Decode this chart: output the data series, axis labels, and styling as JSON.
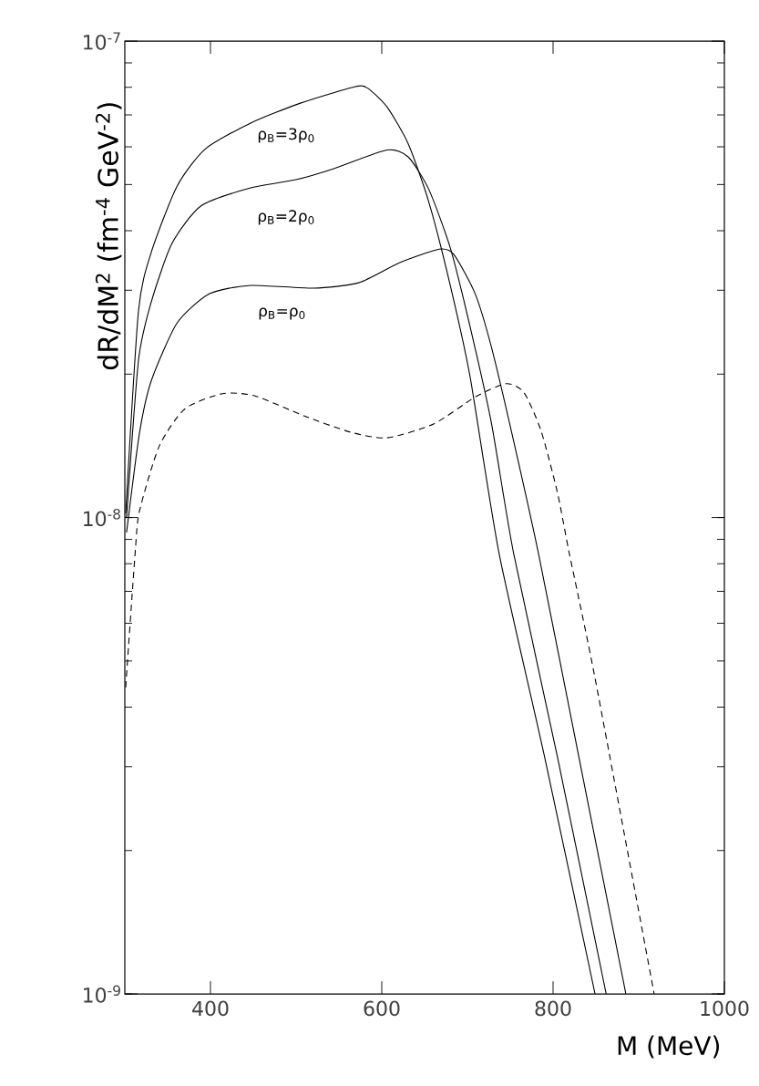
{
  "chart_data": {
    "type": "line",
    "xlabel": "M (MeV)",
    "ylabel": "dR/dM$^{2}$ (fm$^{-4}$ GeV$^{-2}$)",
    "log": "y",
    "xlim": [
      300,
      1000
    ],
    "ylim": [
      1e-09,
      1e-07
    ],
    "xticks": [
      400,
      600,
      800,
      1000
    ],
    "yticks": [
      {
        "value": 1e-09,
        "label": "10$^{-9}$"
      },
      {
        "value": 1e-08,
        "label": "10$^{-8}$"
      },
      {
        "value": 1e-07,
        "label": "10$^{-7}$"
      }
    ],
    "annotations": [
      "ρ$_{B}$=3ρ$_{0}$",
      "ρ$_{B}$=2ρ$_{0}$",
      "ρ$_{B}$=ρ$_{0}$"
    ],
    "series": [
      {
        "color": "#000000",
        "line_style": "solid",
        "x": [
          301,
          316,
          331,
          361,
          394,
          447,
          505,
          568,
          583,
          606,
          631,
          655,
          680,
          703,
          737,
          790,
          849
        ],
        "values": [
          1.02e-08,
          2.72e-08,
          3.61e-08,
          4.96e-08,
          5.94e-08,
          6.73e-08,
          7.41e-08,
          8.02e-08,
          7.98e-08,
          7.28e-08,
          6.08e-08,
          4.59e-08,
          3.07e-08,
          1.98e-08,
          8.4e-09,
          3.15e-09,
          1e-09
        ]
      },
      {
        "color": "#000000",
        "line_style": "solid",
        "x": [
          302,
          316,
          331,
          355,
          389,
          447,
          500,
          544,
          606,
          631,
          655,
          680,
          703,
          728,
          754,
          805,
          862
        ],
        "values": [
          1e-08,
          2.14e-08,
          2.84e-08,
          3.76e-08,
          4.51e-08,
          4.92e-08,
          5.12e-08,
          5.4e-08,
          5.91e-08,
          5.71e-08,
          4.88e-08,
          3.68e-08,
          2.52e-08,
          1.58e-08,
          8.4e-09,
          3.15e-09,
          1e-09
        ]
      },
      {
        "color": "#000000",
        "line_style": "solid",
        "x": [
          302,
          317,
          331,
          361,
          399,
          447,
          520,
          573,
          621,
          667,
          684,
          709,
          728,
          752,
          783,
          830,
          885
        ],
        "values": [
          9.3e-09,
          1.5e-08,
          1.94e-08,
          2.56e-08,
          2.95e-08,
          3.07e-08,
          3.03e-08,
          3.11e-08,
          3.43e-08,
          3.66e-08,
          3.57e-08,
          2.95e-08,
          2.28e-08,
          1.5e-08,
          8.4e-09,
          3.15e-09,
          1e-09
        ]
      },
      {
        "color": "#000000",
        "line_style": "dashed",
        "x": [
          301,
          312,
          317,
          340,
          370,
          414,
          452,
          511,
          564,
          606,
          660,
          709,
          745,
          766,
          786,
          805,
          819,
          849,
          918
        ],
        "values": [
          4.4e-09,
          8.4e-09,
          1.03e-08,
          1.41e-08,
          1.69e-08,
          1.82e-08,
          1.8e-08,
          1.63e-08,
          1.51e-08,
          1.47e-08,
          1.57e-08,
          1.79e-08,
          1.91e-08,
          1.83e-08,
          1.52e-08,
          1.13e-08,
          8.4e-09,
          4.6e-09,
          1e-09
        ]
      }
    ]
  }
}
